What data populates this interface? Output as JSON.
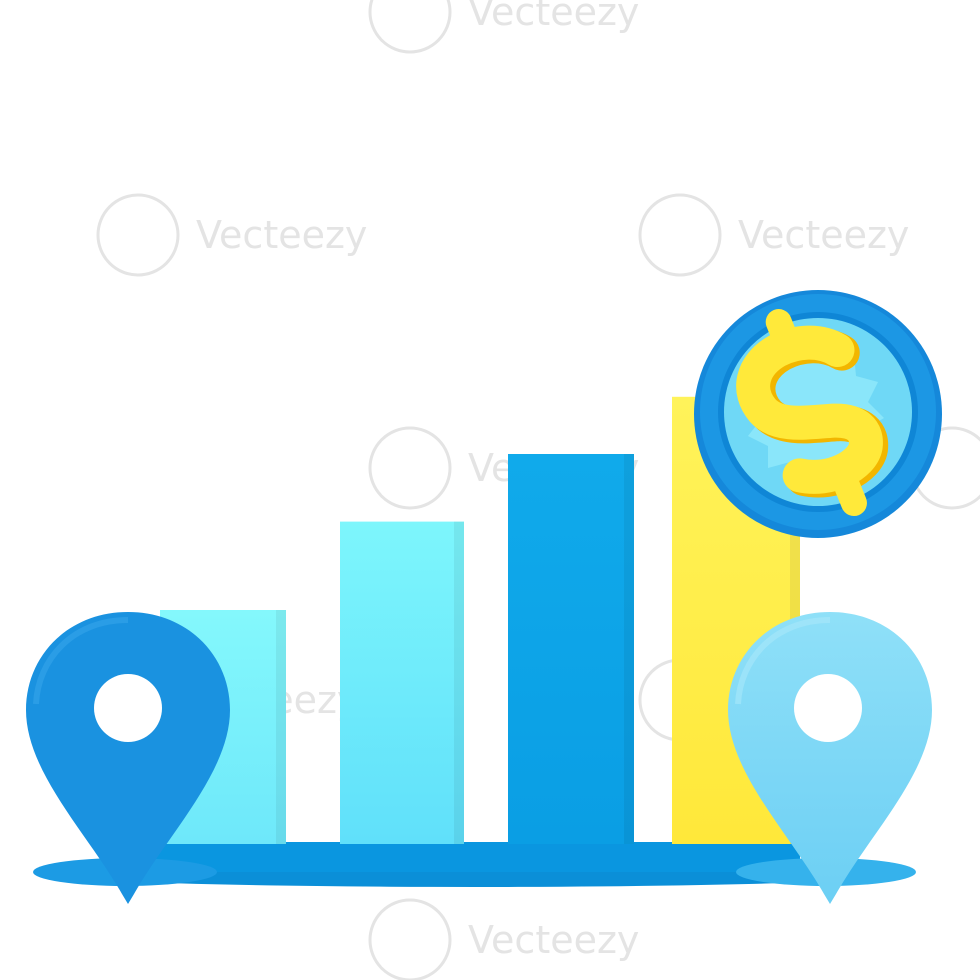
{
  "illustration": {
    "subject": "bar-growth-with-location-pins-and-dollar-coin",
    "colors": {
      "bar_1": "#7ff6fb",
      "bar_2": "#72eefb",
      "bar_3": "#0aa5ea",
      "bar_4": "#fff04a",
      "base": "#0a96e0",
      "pin_left": "#1a92e0",
      "pin_right": "#7cd8f7",
      "coin_ring": "#1690e0",
      "coin_face": "#6fd8f6",
      "dollar": "#ffe93a"
    },
    "relative_heights": [
      0.45,
      0.62,
      0.75,
      0.86
    ],
    "icons": [
      "location-pin-icon",
      "location-pin-icon",
      "dollar-coin-icon"
    ]
  },
  "watermark": {
    "brand": "Vecteezy"
  }
}
